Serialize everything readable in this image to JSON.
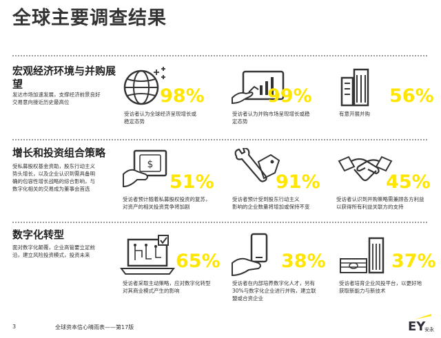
{
  "title": "全球主要调查结果",
  "sections": [
    {
      "title": "宏观经济环境与并购展望",
      "title_line1": "宏观经济环境与并购展",
      "title_line2": "望",
      "desc_line1": "发达市场加速发展，支撑经济前景良好",
      "desc_line2": "交易意向接近历史最高位",
      "stats": [
        {
          "icon": "globe-icon",
          "pct": "98%",
          "line1": "受访者认为全球经济呈现增长或",
          "line2": "稳定态势"
        },
        {
          "icon": "chart-tablet-icon",
          "pct": "99%",
          "line1": "受访者认为并购市场呈现增长或稳",
          "line2": "定态势"
        },
        {
          "icon": "buildings-icon",
          "pct": "56%",
          "line1": "有意开展并购",
          "line2": ""
        }
      ]
    },
    {
      "title": "增长和投资组合策略",
      "desc_lines": [
        "受私募股权基金资助，股东行动主义",
        "势头增长，以及企业认识到需具备明",
        "确的包容性增长战略的综合影响，与",
        "数字化相关的交易成为董事会首选"
      ],
      "stats": [
        {
          "icon": "money-hand-icon",
          "pct": "51%",
          "line1": "受访者预计随着私募股权投资的复苏，",
          "line2": "对资产的相关投资竞争将加剧"
        },
        {
          "icon": "wrench-tag-icon",
          "pct": "91%",
          "line1": "受访者预计受到股东行动主义",
          "line2": "影响的企业数量将增加或保持不变"
        },
        {
          "icon": "handshake-icon",
          "pct": "45%",
          "line1": "受访者认识到并购策略需兼顾各方利益",
          "line2": "以获得所有利益关联方的支持"
        }
      ]
    },
    {
      "title": "数字化转型",
      "desc_line1": "面对数字化颠覆，企业高管要立足前",
      "desc_line2": "沿，建立风险投资模式，投资未来",
      "stats": [
        {
          "icon": "laptop-circuit-icon",
          "pct": "65%",
          "line1": "受访者采取主动策略，应对数字化转型",
          "line2": "对其商业模式产生的影响"
        },
        {
          "icon": "phone-hand-icon",
          "pct": "38%",
          "line1": "受访者在内部培养数字化人才，另有",
          "line2": "30%与数字化企业进行并购，建立联",
          "line3": "盟或合资企业"
        },
        {
          "icon": "cash-building-icon",
          "pct": "37%",
          "line1": "受访者培育企业风投平台，以更好地",
          "line2": "获取新能力与新技术"
        }
      ]
    }
  ],
  "footer": {
    "page": "3",
    "pub": "全球资本信心晴雨表——第17版",
    "logo": "EY",
    "logo_sub": "安永"
  },
  "colors": {
    "accent": "#ffe600",
    "text": "#2e2e38",
    "dots": "#999999"
  }
}
